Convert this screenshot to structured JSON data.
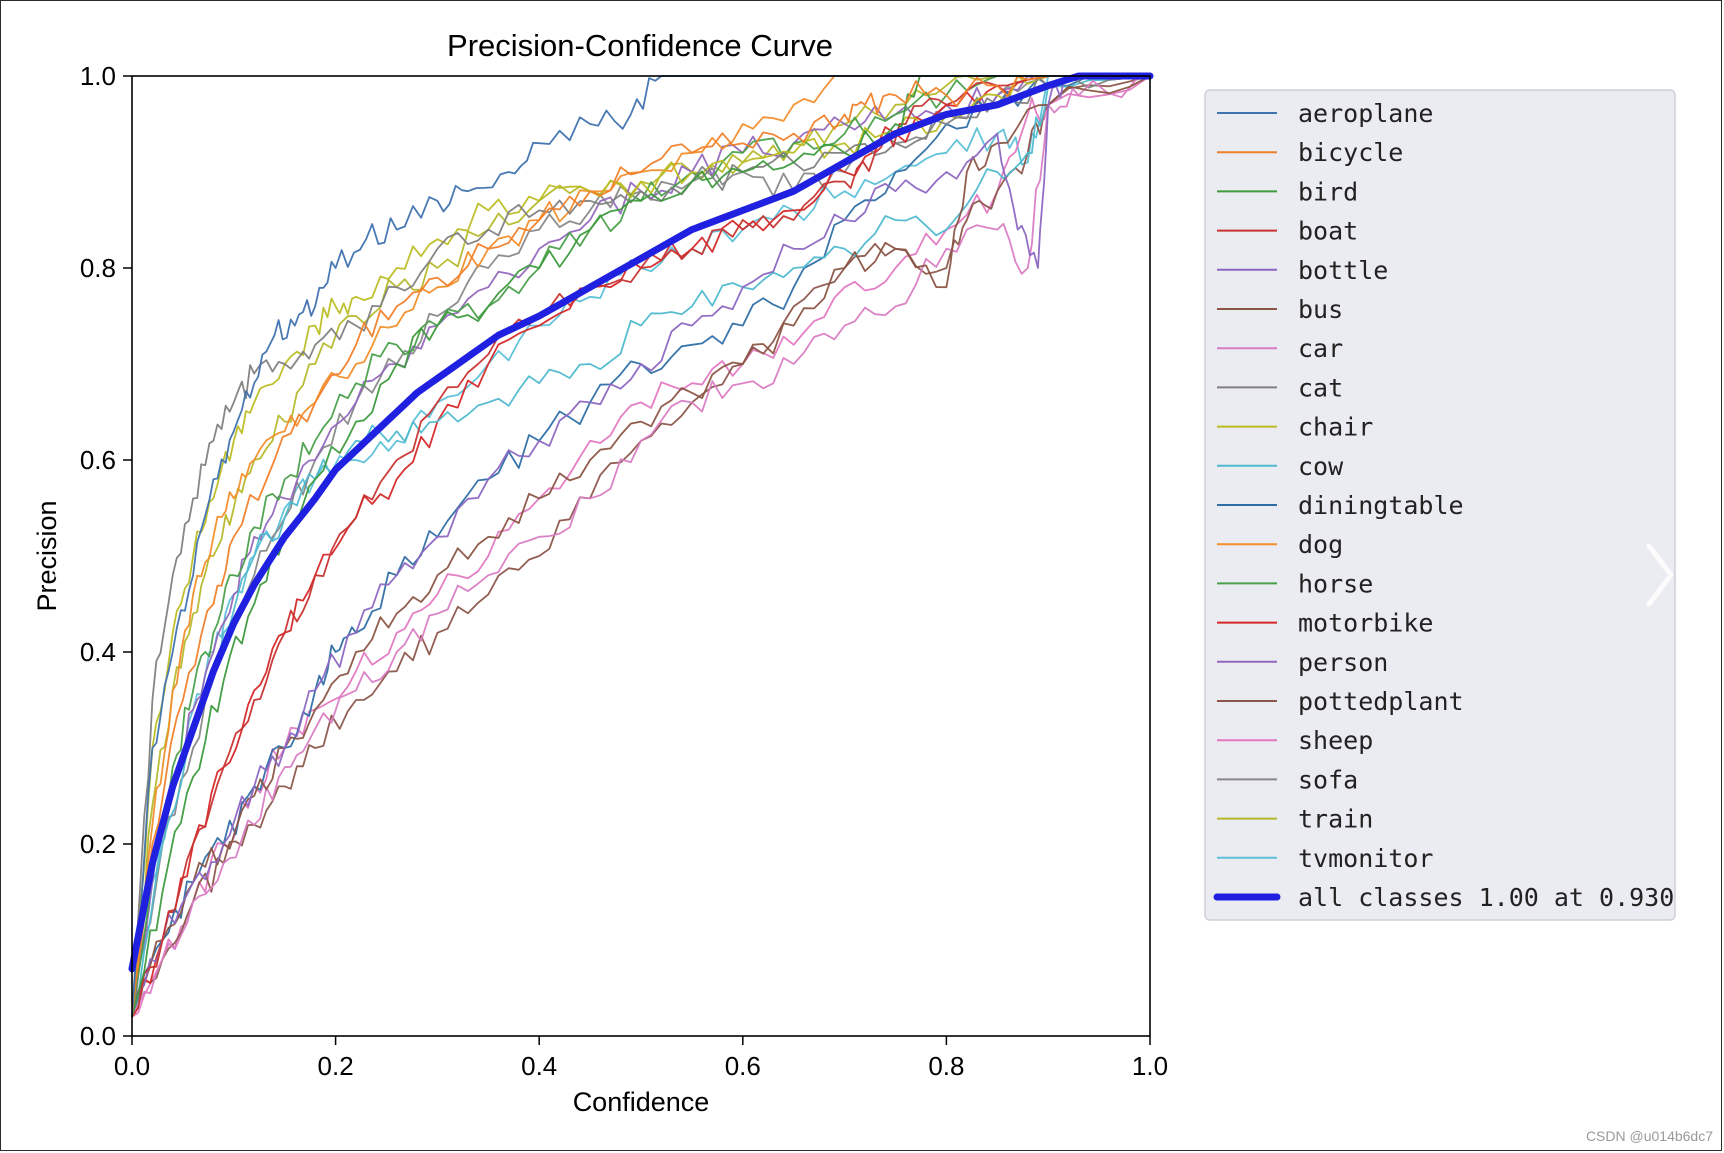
{
  "chart_data": {
    "type": "line",
    "title": "Precision-Confidence Curve",
    "xlabel": "Confidence",
    "ylabel": "Precision",
    "xlim": [
      0,
      1
    ],
    "ylim": [
      0,
      1
    ],
    "xticks": [
      "0.0",
      "0.2",
      "0.4",
      "0.6",
      "0.8",
      "1.0"
    ],
    "yticks": [
      "0.0",
      "0.2",
      "0.4",
      "0.6",
      "0.8",
      "1.0"
    ],
    "grid": false,
    "legend_position": "outside-right",
    "series": [
      {
        "name": "aeroplane",
        "color": "#3f72af",
        "x": [
          0.0,
          0.02,
          0.04,
          0.06,
          0.08,
          0.1,
          0.12,
          0.14,
          0.16,
          0.18,
          0.2,
          0.23,
          0.26,
          0.3,
          0.33,
          0.37,
          0.4,
          0.45,
          0.49,
          0.52,
          0.55,
          0.6,
          0.7,
          0.8,
          0.9,
          1.0
        ],
        "y": [
          0.02,
          0.3,
          0.4,
          0.48,
          0.58,
          0.63,
          0.68,
          0.73,
          0.74,
          0.76,
          0.8,
          0.83,
          0.84,
          0.87,
          0.88,
          0.9,
          0.93,
          0.95,
          0.96,
          1.0,
          1.0,
          1.0,
          1.0,
          1.0,
          1.0,
          1.0
        ]
      },
      {
        "name": "bicycle",
        "color": "#f07f2a",
        "x": [
          0.0,
          0.02,
          0.05,
          0.08,
          0.1,
          0.14,
          0.18,
          0.22,
          0.26,
          0.3,
          0.35,
          0.4,
          0.45,
          0.5,
          0.55,
          0.6,
          0.65,
          0.7,
          0.72,
          0.75,
          0.8,
          0.85,
          0.9,
          1.0
        ],
        "y": [
          0.02,
          0.2,
          0.35,
          0.45,
          0.52,
          0.6,
          0.66,
          0.72,
          0.76,
          0.79,
          0.82,
          0.85,
          0.88,
          0.9,
          0.92,
          0.93,
          0.94,
          0.96,
          0.97,
          0.98,
          0.98,
          0.99,
          1.0,
          1.0
        ]
      },
      {
        "name": "bird",
        "color": "#3d9a3d",
        "x": [
          0.0,
          0.03,
          0.06,
          0.09,
          0.12,
          0.15,
          0.18,
          0.22,
          0.26,
          0.3,
          0.35,
          0.4,
          0.45,
          0.5,
          0.55,
          0.6,
          0.65,
          0.7,
          0.75,
          0.78,
          0.8,
          0.85,
          0.9,
          1.0
        ],
        "y": [
          0.02,
          0.15,
          0.27,
          0.37,
          0.45,
          0.52,
          0.58,
          0.64,
          0.7,
          0.74,
          0.76,
          0.8,
          0.84,
          0.87,
          0.89,
          0.9,
          0.91,
          0.92,
          0.95,
          1.0,
          1.0,
          1.0,
          1.0,
          1.0
        ]
      },
      {
        "name": "boat",
        "color": "#c8332f",
        "x": [
          0.0,
          0.03,
          0.06,
          0.09,
          0.12,
          0.15,
          0.18,
          0.22,
          0.26,
          0.3,
          0.35,
          0.4,
          0.45,
          0.5,
          0.55,
          0.6,
          0.65,
          0.7,
          0.73,
          0.76,
          0.8,
          0.85,
          0.9,
          1.0
        ],
        "y": [
          0.02,
          0.1,
          0.2,
          0.28,
          0.35,
          0.42,
          0.48,
          0.54,
          0.6,
          0.66,
          0.71,
          0.75,
          0.78,
          0.8,
          0.82,
          0.85,
          0.85,
          0.89,
          0.92,
          0.95,
          0.97,
          0.99,
          1.0,
          1.0
        ]
      },
      {
        "name": "bottle",
        "color": "#8c67c2",
        "x": [
          0.0,
          0.03,
          0.06,
          0.09,
          0.12,
          0.15,
          0.18,
          0.22,
          0.26,
          0.3,
          0.35,
          0.4,
          0.45,
          0.5,
          0.55,
          0.6,
          0.65,
          0.7,
          0.75,
          0.8,
          0.85,
          0.87,
          0.89,
          0.9,
          0.92,
          1.0
        ],
        "y": [
          0.02,
          0.1,
          0.16,
          0.2,
          0.26,
          0.3,
          0.36,
          0.42,
          0.48,
          0.52,
          0.58,
          0.62,
          0.66,
          0.7,
          0.74,
          0.78,
          0.82,
          0.85,
          0.88,
          0.9,
          0.94,
          0.84,
          0.8,
          0.97,
          1.0,
          1.0
        ]
      },
      {
        "name": "bus",
        "color": "#8b5443",
        "x": [
          0.0,
          0.03,
          0.06,
          0.09,
          0.12,
          0.15,
          0.18,
          0.22,
          0.26,
          0.3,
          0.35,
          0.4,
          0.45,
          0.5,
          0.55,
          0.6,
          0.65,
          0.7,
          0.75,
          0.8,
          0.82,
          0.85,
          0.9,
          1.0
        ],
        "y": [
          0.02,
          0.1,
          0.16,
          0.2,
          0.25,
          0.3,
          0.34,
          0.4,
          0.44,
          0.48,
          0.52,
          0.56,
          0.6,
          0.64,
          0.67,
          0.7,
          0.74,
          0.8,
          0.82,
          0.78,
          0.9,
          0.93,
          0.97,
          1.0
        ]
      },
      {
        "name": "car",
        "color": "#d97cc4",
        "x": [
          0.0,
          0.03,
          0.06,
          0.09,
          0.12,
          0.15,
          0.18,
          0.22,
          0.26,
          0.3,
          0.35,
          0.4,
          0.45,
          0.5,
          0.55,
          0.6,
          0.65,
          0.7,
          0.75,
          0.8,
          0.85,
          0.88,
          0.9,
          0.93,
          1.0
        ],
        "y": [
          0.02,
          0.08,
          0.14,
          0.18,
          0.22,
          0.28,
          0.32,
          0.36,
          0.4,
          0.44,
          0.48,
          0.52,
          0.56,
          0.62,
          0.66,
          0.68,
          0.7,
          0.74,
          0.76,
          0.82,
          0.84,
          0.8,
          0.97,
          0.98,
          1.0
        ]
      },
      {
        "name": "cat",
        "color": "#7f7f7f",
        "x": [
          0.0,
          0.02,
          0.04,
          0.06,
          0.08,
          0.1,
          0.12,
          0.15,
          0.18,
          0.22,
          0.26,
          0.3,
          0.35,
          0.4,
          0.45,
          0.5,
          0.55,
          0.6,
          0.65,
          0.7,
          0.75,
          0.8,
          0.85,
          0.9,
          1.0
        ],
        "y": [
          0.02,
          0.35,
          0.48,
          0.56,
          0.62,
          0.66,
          0.69,
          0.7,
          0.72,
          0.74,
          0.78,
          0.82,
          0.84,
          0.86,
          0.87,
          0.88,
          0.89,
          0.9,
          0.91,
          0.92,
          0.93,
          0.95,
          0.97,
          0.99,
          1.0
        ]
      },
      {
        "name": "chair",
        "color": "#bcbd22",
        "x": [
          0.0,
          0.02,
          0.04,
          0.06,
          0.08,
          0.1,
          0.12,
          0.15,
          0.18,
          0.2,
          0.22,
          0.26,
          0.3,
          0.35,
          0.4,
          0.45,
          0.5,
          0.55,
          0.6,
          0.65,
          0.7,
          0.75,
          0.8,
          0.85,
          0.9,
          1.0
        ],
        "y": [
          0.02,
          0.3,
          0.42,
          0.5,
          0.56,
          0.62,
          0.66,
          0.7,
          0.74,
          0.76,
          0.77,
          0.8,
          0.83,
          0.86,
          0.87,
          0.88,
          0.89,
          0.9,
          0.91,
          0.92,
          0.93,
          0.94,
          0.96,
          0.98,
          1.0,
          1.0
        ]
      },
      {
        "name": "cow",
        "color": "#4fb9cd",
        "x": [
          0.0,
          0.03,
          0.06,
          0.09,
          0.12,
          0.15,
          0.18,
          0.22,
          0.26,
          0.3,
          0.35,
          0.4,
          0.45,
          0.5,
          0.55,
          0.6,
          0.65,
          0.7,
          0.75,
          0.8,
          0.85,
          0.88,
          0.9,
          1.0
        ],
        "y": [
          0.02,
          0.2,
          0.32,
          0.42,
          0.5,
          0.54,
          0.58,
          0.62,
          0.63,
          0.64,
          0.66,
          0.68,
          0.7,
          0.74,
          0.76,
          0.78,
          0.8,
          0.82,
          0.85,
          0.84,
          0.9,
          0.92,
          0.99,
          1.0
        ]
      },
      {
        "name": "diningtable",
        "color": "#2f6ea5",
        "x": [
          0.0,
          0.03,
          0.06,
          0.09,
          0.12,
          0.15,
          0.18,
          0.2,
          0.22,
          0.26,
          0.3,
          0.35,
          0.4,
          0.45,
          0.5,
          0.55,
          0.6,
          0.65,
          0.7,
          0.75,
          0.8,
          0.85,
          0.9,
          1.0
        ],
        "y": [
          0.02,
          0.1,
          0.16,
          0.2,
          0.26,
          0.3,
          0.36,
          0.4,
          0.42,
          0.48,
          0.52,
          0.58,
          0.62,
          0.66,
          0.7,
          0.72,
          0.74,
          0.78,
          0.85,
          0.9,
          0.95,
          0.97,
          0.99,
          1.0
        ]
      },
      {
        "name": "dog",
        "color": "#f28e2b",
        "x": [
          0.0,
          0.02,
          0.04,
          0.06,
          0.08,
          0.1,
          0.12,
          0.15,
          0.18,
          0.22,
          0.26,
          0.3,
          0.35,
          0.4,
          0.45,
          0.5,
          0.55,
          0.6,
          0.65,
          0.7,
          0.75,
          0.8,
          0.85,
          0.9,
          1.0
        ],
        "y": [
          0.02,
          0.22,
          0.36,
          0.46,
          0.52,
          0.56,
          0.6,
          0.63,
          0.66,
          0.7,
          0.74,
          0.78,
          0.82,
          0.85,
          0.88,
          0.9,
          0.92,
          0.95,
          0.97,
          1.0,
          1.0,
          1.0,
          1.0,
          1.0,
          1.0
        ]
      },
      {
        "name": "horse",
        "color": "#4aa04a",
        "x": [
          0.0,
          0.02,
          0.04,
          0.06,
          0.08,
          0.1,
          0.12,
          0.15,
          0.18,
          0.22,
          0.26,
          0.3,
          0.35,
          0.4,
          0.45,
          0.5,
          0.55,
          0.6,
          0.65,
          0.7,
          0.75,
          0.8,
          0.85,
          0.9,
          1.0
        ],
        "y": [
          0.02,
          0.18,
          0.28,
          0.36,
          0.42,
          0.48,
          0.53,
          0.58,
          0.62,
          0.68,
          0.72,
          0.74,
          0.76,
          0.8,
          0.84,
          0.87,
          0.9,
          0.92,
          0.93,
          0.94,
          0.96,
          0.98,
          1.0,
          1.0,
          1.0
        ]
      },
      {
        "name": "motorbike",
        "color": "#d62728",
        "x": [
          0.0,
          0.03,
          0.06,
          0.09,
          0.12,
          0.15,
          0.18,
          0.22,
          0.26,
          0.3,
          0.35,
          0.4,
          0.45,
          0.5,
          0.55,
          0.6,
          0.65,
          0.7,
          0.75,
          0.8,
          0.85,
          0.9,
          1.0
        ],
        "y": [
          0.02,
          0.1,
          0.2,
          0.28,
          0.36,
          0.42,
          0.48,
          0.54,
          0.58,
          0.64,
          0.7,
          0.74,
          0.78,
          0.8,
          0.82,
          0.84,
          0.86,
          0.9,
          0.94,
          0.97,
          0.99,
          1.0,
          1.0
        ]
      },
      {
        "name": "person",
        "color": "#9467bd",
        "x": [
          0.0,
          0.02,
          0.04,
          0.06,
          0.08,
          0.1,
          0.12,
          0.15,
          0.18,
          0.22,
          0.26,
          0.3,
          0.35,
          0.4,
          0.45,
          0.5,
          0.55,
          0.6,
          0.65,
          0.7,
          0.75,
          0.8,
          0.85,
          0.9,
          1.0
        ],
        "y": [
          0.02,
          0.16,
          0.26,
          0.34,
          0.4,
          0.46,
          0.52,
          0.56,
          0.6,
          0.66,
          0.7,
          0.74,
          0.78,
          0.82,
          0.85,
          0.88,
          0.9,
          0.92,
          0.93,
          0.95,
          0.96,
          0.97,
          0.98,
          1.0,
          1.0
        ]
      },
      {
        "name": "pottedplant",
        "color": "#8c564b",
        "x": [
          0.0,
          0.03,
          0.06,
          0.09,
          0.12,
          0.15,
          0.18,
          0.22,
          0.26,
          0.3,
          0.35,
          0.4,
          0.45,
          0.5,
          0.55,
          0.6,
          0.65,
          0.7,
          0.75,
          0.8,
          0.82,
          0.85,
          0.88,
          0.9,
          1.0
        ],
        "y": [
          0.02,
          0.08,
          0.14,
          0.18,
          0.22,
          0.26,
          0.3,
          0.35,
          0.38,
          0.42,
          0.46,
          0.5,
          0.56,
          0.62,
          0.66,
          0.7,
          0.76,
          0.8,
          0.82,
          0.8,
          0.85,
          0.88,
          0.92,
          0.97,
          1.0
        ]
      },
      {
        "name": "sheep",
        "color": "#e377c2",
        "x": [
          0.0,
          0.03,
          0.06,
          0.09,
          0.12,
          0.15,
          0.18,
          0.22,
          0.26,
          0.3,
          0.35,
          0.4,
          0.45,
          0.5,
          0.55,
          0.6,
          0.65,
          0.7,
          0.75,
          0.8,
          0.85,
          0.88,
          0.9,
          1.0
        ],
        "y": [
          0.02,
          0.08,
          0.14,
          0.2,
          0.26,
          0.3,
          0.34,
          0.38,
          0.42,
          0.46,
          0.5,
          0.56,
          0.62,
          0.66,
          0.68,
          0.7,
          0.72,
          0.78,
          0.8,
          0.84,
          0.88,
          0.96,
          0.97,
          1.0
        ]
      },
      {
        "name": "sofa",
        "color": "#888888",
        "x": [
          0.0,
          0.03,
          0.06,
          0.09,
          0.12,
          0.15,
          0.18,
          0.22,
          0.26,
          0.3,
          0.35,
          0.4,
          0.45,
          0.5,
          0.55,
          0.6,
          0.65,
          0.7,
          0.75,
          0.8,
          0.85,
          0.9,
          1.0
        ],
        "y": [
          0.02,
          0.2,
          0.3,
          0.4,
          0.48,
          0.54,
          0.6,
          0.66,
          0.7,
          0.75,
          0.8,
          0.84,
          0.86,
          0.88,
          0.89,
          0.9,
          0.88,
          0.9,
          0.93,
          0.96,
          0.98,
          1.0,
          1.0
        ]
      },
      {
        "name": "train",
        "color": "#b5b82a",
        "x": [
          0.0,
          0.02,
          0.04,
          0.06,
          0.08,
          0.1,
          0.12,
          0.15,
          0.18,
          0.22,
          0.26,
          0.3,
          0.35,
          0.4,
          0.45,
          0.5,
          0.55,
          0.6,
          0.65,
          0.7,
          0.75,
          0.8,
          0.85,
          0.9,
          1.0
        ],
        "y": [
          0.02,
          0.24,
          0.36,
          0.44,
          0.5,
          0.55,
          0.6,
          0.64,
          0.7,
          0.75,
          0.78,
          0.8,
          0.84,
          0.87,
          0.88,
          0.89,
          0.9,
          0.91,
          0.93,
          0.95,
          0.97,
          0.99,
          1.0,
          1.0,
          1.0
        ]
      },
      {
        "name": "tvmonitor",
        "color": "#5bc0d8",
        "x": [
          0.0,
          0.02,
          0.04,
          0.06,
          0.08,
          0.1,
          0.12,
          0.15,
          0.18,
          0.22,
          0.26,
          0.3,
          0.35,
          0.4,
          0.45,
          0.5,
          0.55,
          0.6,
          0.65,
          0.7,
          0.75,
          0.8,
          0.85,
          0.88,
          0.9,
          1.0
        ],
        "y": [
          0.02,
          0.16,
          0.26,
          0.34,
          0.4,
          0.46,
          0.5,
          0.55,
          0.58,
          0.6,
          0.62,
          0.66,
          0.7,
          0.74,
          0.77,
          0.8,
          0.82,
          0.84,
          0.86,
          0.88,
          0.9,
          0.92,
          0.94,
          0.91,
          1.0,
          1.0
        ]
      },
      {
        "name": "all classes 1.00 at 0.930",
        "color": "#2020e0",
        "width": "bold",
        "x": [
          0.0,
          0.02,
          0.04,
          0.06,
          0.08,
          0.1,
          0.12,
          0.15,
          0.18,
          0.2,
          0.22,
          0.25,
          0.28,
          0.32,
          0.36,
          0.4,
          0.45,
          0.5,
          0.55,
          0.6,
          0.65,
          0.7,
          0.75,
          0.8,
          0.85,
          0.9,
          0.93,
          1.0
        ],
        "y": [
          0.07,
          0.18,
          0.26,
          0.32,
          0.38,
          0.43,
          0.47,
          0.52,
          0.56,
          0.59,
          0.61,
          0.64,
          0.67,
          0.7,
          0.73,
          0.75,
          0.78,
          0.81,
          0.84,
          0.86,
          0.88,
          0.91,
          0.94,
          0.96,
          0.97,
          0.99,
          1.0,
          1.0
        ]
      }
    ]
  },
  "watermark": "CSDN @u014b6dc7"
}
